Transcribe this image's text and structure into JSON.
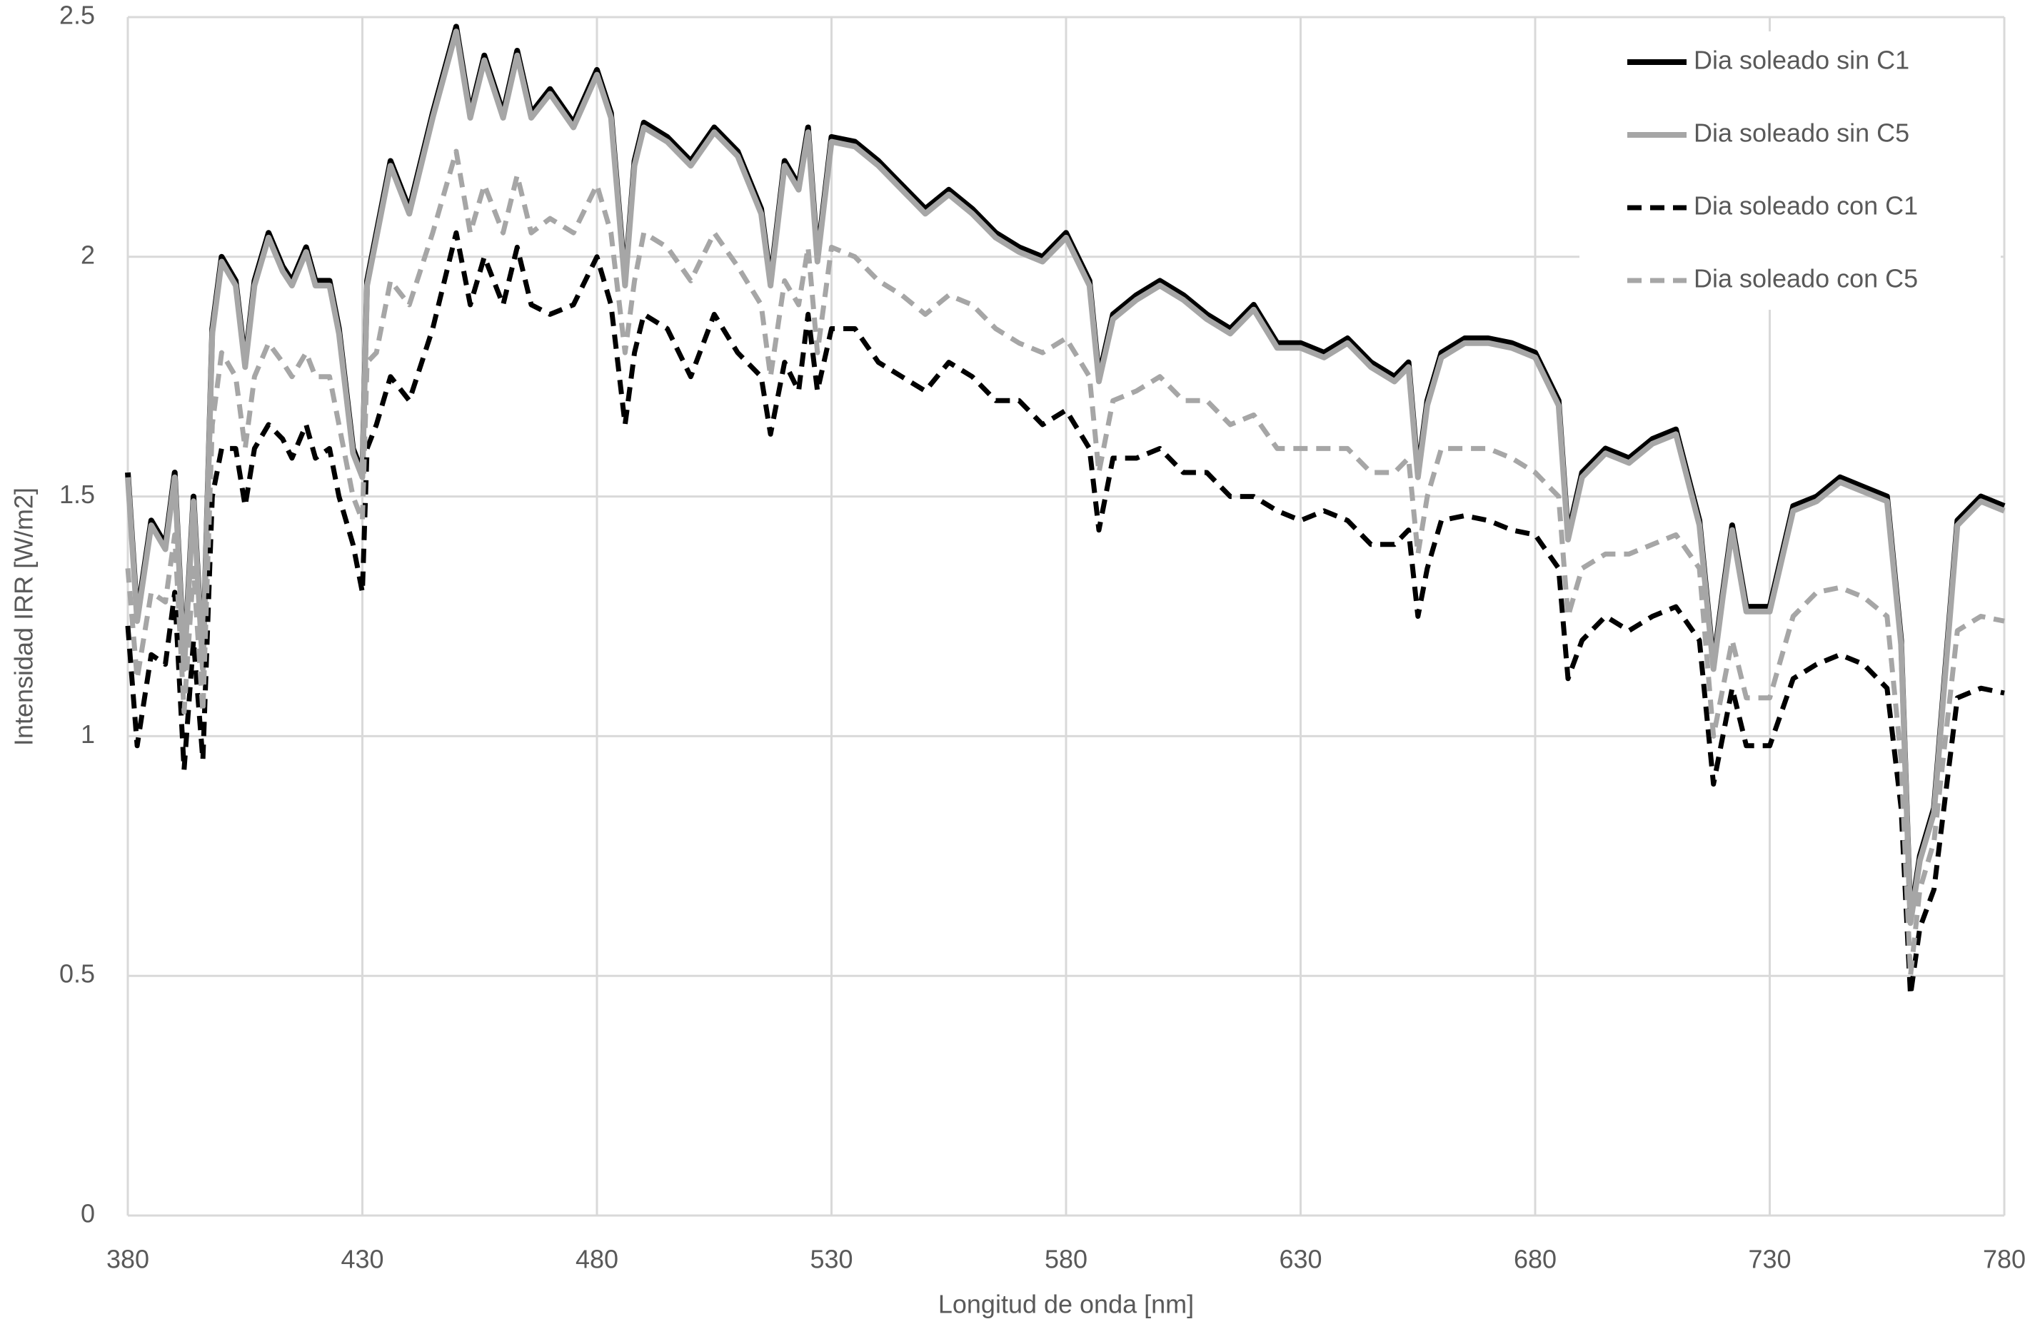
{
  "chart_data": {
    "type": "line",
    "xlabel": "Longitud de onda [nm]",
    "ylabel": "Intensidad IRR [W/m2]",
    "x": [
      380,
      382,
      385,
      388,
      390,
      392,
      394,
      396,
      398,
      400,
      403,
      405,
      407,
      410,
      413,
      415,
      418,
      420,
      423,
      425,
      428,
      430,
      431,
      433,
      436,
      440,
      445,
      450,
      453,
      456,
      460,
      463,
      466,
      470,
      475,
      480,
      483,
      486,
      488,
      490,
      495,
      500,
      505,
      510,
      515,
      517,
      520,
      523,
      525,
      527,
      530,
      535,
      540,
      545,
      550,
      555,
      560,
      565,
      570,
      575,
      580,
      585,
      587,
      590,
      595,
      600,
      605,
      610,
      615,
      620,
      625,
      630,
      635,
      640,
      645,
      650,
      653,
      655,
      657,
      660,
      665,
      670,
      675,
      680,
      685,
      687,
      690,
      695,
      700,
      705,
      710,
      715,
      718,
      720,
      722,
      725,
      730,
      735,
      740,
      745,
      750,
      755,
      758,
      760,
      762,
      765,
      770,
      775,
      780
    ],
    "series": [
      {
        "name": "Dia soleado sin C1",
        "color": "#000000",
        "dash": false,
        "values": [
          1.55,
          1.25,
          1.45,
          1.4,
          1.55,
          1.15,
          1.5,
          1.15,
          1.85,
          2.0,
          1.95,
          1.78,
          1.95,
          2.05,
          1.98,
          1.95,
          2.02,
          1.95,
          1.95,
          1.85,
          1.6,
          1.55,
          1.95,
          2.05,
          2.2,
          2.1,
          2.3,
          2.48,
          2.3,
          2.42,
          2.3,
          2.43,
          2.3,
          2.35,
          2.28,
          2.39,
          2.3,
          1.95,
          2.2,
          2.28,
          2.25,
          2.2,
          2.27,
          2.22,
          2.1,
          1.95,
          2.2,
          2.15,
          2.27,
          2.0,
          2.25,
          2.24,
          2.2,
          2.15,
          2.1,
          2.14,
          2.1,
          2.05,
          2.02,
          2.0,
          2.05,
          1.95,
          1.75,
          1.88,
          1.92,
          1.95,
          1.92,
          1.88,
          1.85,
          1.9,
          1.82,
          1.82,
          1.8,
          1.83,
          1.78,
          1.75,
          1.78,
          1.55,
          1.7,
          1.8,
          1.83,
          1.83,
          1.82,
          1.8,
          1.7,
          1.42,
          1.55,
          1.6,
          1.58,
          1.62,
          1.64,
          1.45,
          1.15,
          1.3,
          1.44,
          1.27,
          1.27,
          1.48,
          1.5,
          1.54,
          1.52,
          1.5,
          1.2,
          0.62,
          0.75,
          0.85,
          1.45,
          1.5,
          1.48
        ]
      },
      {
        "name": "Dia soleado sin C5",
        "color": "#a6a6a6",
        "dash": false,
        "values": [
          1.54,
          1.24,
          1.44,
          1.39,
          1.54,
          1.14,
          1.49,
          1.14,
          1.84,
          1.99,
          1.94,
          1.77,
          1.94,
          2.04,
          1.97,
          1.94,
          2.01,
          1.94,
          1.94,
          1.84,
          1.59,
          1.54,
          1.94,
          2.04,
          2.19,
          2.09,
          2.29,
          2.47,
          2.29,
          2.41,
          2.29,
          2.42,
          2.29,
          2.34,
          2.27,
          2.38,
          2.29,
          1.94,
          2.19,
          2.27,
          2.24,
          2.19,
          2.26,
          2.21,
          2.09,
          1.94,
          2.19,
          2.14,
          2.26,
          1.99,
          2.24,
          2.23,
          2.19,
          2.14,
          2.09,
          2.13,
          2.09,
          2.04,
          2.01,
          1.99,
          2.04,
          1.94,
          1.74,
          1.87,
          1.91,
          1.94,
          1.91,
          1.87,
          1.84,
          1.89,
          1.81,
          1.81,
          1.79,
          1.82,
          1.77,
          1.74,
          1.77,
          1.54,
          1.69,
          1.79,
          1.82,
          1.82,
          1.81,
          1.79,
          1.69,
          1.41,
          1.54,
          1.59,
          1.57,
          1.61,
          1.63,
          1.44,
          1.14,
          1.29,
          1.43,
          1.26,
          1.26,
          1.47,
          1.49,
          1.53,
          1.51,
          1.49,
          1.19,
          0.61,
          0.74,
          0.84,
          1.44,
          1.49,
          1.47
        ]
      },
      {
        "name": "Dia soleado con C1",
        "color": "#000000",
        "dash": true,
        "values": [
          1.23,
          0.98,
          1.17,
          1.15,
          1.3,
          0.93,
          1.2,
          0.95,
          1.5,
          1.6,
          1.6,
          1.48,
          1.6,
          1.65,
          1.62,
          1.58,
          1.65,
          1.58,
          1.6,
          1.5,
          1.4,
          1.3,
          1.6,
          1.65,
          1.75,
          1.7,
          1.85,
          2.05,
          1.9,
          2.0,
          1.9,
          2.02,
          1.9,
          1.88,
          1.9,
          2.0,
          1.9,
          1.65,
          1.8,
          1.88,
          1.85,
          1.75,
          1.88,
          1.8,
          1.75,
          1.63,
          1.78,
          1.72,
          1.88,
          1.72,
          1.85,
          1.85,
          1.78,
          1.75,
          1.72,
          1.78,
          1.75,
          1.7,
          1.7,
          1.65,
          1.68,
          1.6,
          1.43,
          1.58,
          1.58,
          1.6,
          1.55,
          1.55,
          1.5,
          1.5,
          1.47,
          1.45,
          1.47,
          1.45,
          1.4,
          1.4,
          1.43,
          1.25,
          1.35,
          1.45,
          1.46,
          1.45,
          1.43,
          1.42,
          1.35,
          1.12,
          1.2,
          1.25,
          1.22,
          1.25,
          1.27,
          1.2,
          0.9,
          1.0,
          1.1,
          0.98,
          0.98,
          1.12,
          1.15,
          1.17,
          1.15,
          1.1,
          0.85,
          0.46,
          0.6,
          0.68,
          1.08,
          1.1,
          1.09
        ]
      },
      {
        "name": "Dia soleado con C5",
        "color": "#a6a6a6",
        "dash": true,
        "values": [
          1.35,
          1.12,
          1.3,
          1.28,
          1.42,
          1.05,
          1.35,
          1.05,
          1.65,
          1.8,
          1.75,
          1.6,
          1.75,
          1.82,
          1.78,
          1.75,
          1.8,
          1.75,
          1.75,
          1.65,
          1.5,
          1.45,
          1.78,
          1.8,
          1.95,
          1.9,
          2.05,
          2.22,
          2.05,
          2.15,
          2.05,
          2.17,
          2.05,
          2.08,
          2.05,
          2.15,
          2.05,
          1.8,
          1.95,
          2.05,
          2.02,
          1.95,
          2.05,
          1.98,
          1.9,
          1.75,
          1.95,
          1.9,
          2.02,
          1.8,
          2.02,
          2.0,
          1.95,
          1.92,
          1.88,
          1.92,
          1.9,
          1.85,
          1.82,
          1.8,
          1.83,
          1.75,
          1.55,
          1.7,
          1.72,
          1.75,
          1.7,
          1.7,
          1.65,
          1.67,
          1.6,
          1.6,
          1.6,
          1.6,
          1.55,
          1.55,
          1.58,
          1.38,
          1.5,
          1.6,
          1.6,
          1.6,
          1.58,
          1.55,
          1.5,
          1.25,
          1.35,
          1.38,
          1.38,
          1.4,
          1.42,
          1.35,
          1.0,
          1.1,
          1.2,
          1.08,
          1.08,
          1.25,
          1.3,
          1.31,
          1.29,
          1.25,
          0.95,
          0.5,
          0.68,
          0.78,
          1.22,
          1.25,
          1.24
        ]
      }
    ],
    "xlim": [
      380,
      780
    ],
    "xticks": [
      380,
      430,
      480,
      530,
      580,
      630,
      680,
      730,
      780
    ],
    "ylim": [
      0,
      2.5
    ],
    "yticks": [
      0,
      0.5,
      1,
      1.5,
      2,
      2.5
    ],
    "grid": true,
    "legend": "upper right"
  }
}
